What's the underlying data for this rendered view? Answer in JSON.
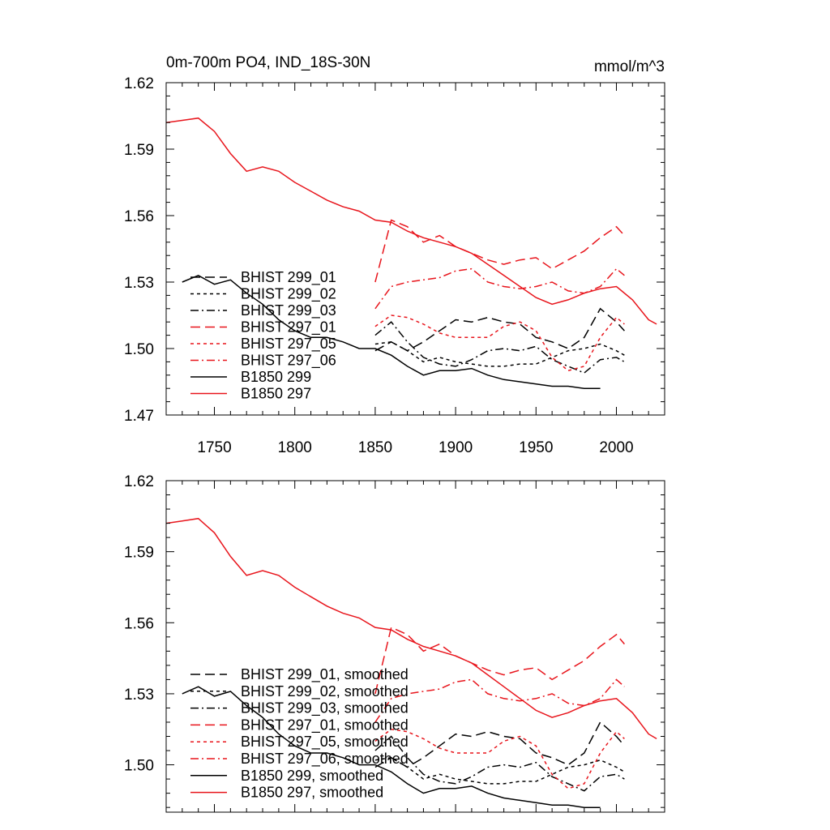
{
  "chart_data": [
    {
      "type": "line",
      "title": "0m-700m PO4, IND_18S-30N",
      "units": "mmol/m^3",
      "xlim": [
        1720,
        2030
      ],
      "ylim": [
        1.47,
        1.62
      ],
      "x_ticks": [
        1750,
        1800,
        1850,
        1900,
        1950,
        2000
      ],
      "x_tick_labels": [
        "1750",
        "1800",
        "1850",
        "1900",
        "1950",
        "2000"
      ],
      "y_ticks": [
        1.47,
        1.5,
        1.53,
        1.56,
        1.59,
        1.62
      ],
      "y_tick_labels": [
        "1.47",
        "1.50",
        "1.53",
        "1.56",
        "1.59",
        "1.62"
      ],
      "legend": {
        "location": "lower-left"
      },
      "series": [
        {
          "name": "BHIST 299_01",
          "color": "#000000",
          "dash": "long-dash",
          "x": [
            1850,
            1860,
            1870,
            1880,
            1890,
            1900,
            1910,
            1920,
            1930,
            1940,
            1950,
            1960,
            1970,
            1980,
            1990,
            2000,
            2005
          ],
          "y": [
            1.499,
            1.503,
            1.499,
            1.503,
            1.508,
            1.513,
            1.512,
            1.514,
            1.512,
            1.511,
            1.505,
            1.503,
            1.5,
            1.505,
            1.518,
            1.512,
            1.508
          ]
        },
        {
          "name": "BHIST 299_02",
          "color": "#000000",
          "dash": "short-dash",
          "x": [
            1850,
            1860,
            1870,
            1880,
            1890,
            1900,
            1910,
            1920,
            1930,
            1940,
            1950,
            1960,
            1970,
            1980,
            1990,
            2000,
            2005
          ],
          "y": [
            1.502,
            1.503,
            1.499,
            1.494,
            1.496,
            1.494,
            1.493,
            1.492,
            1.492,
            1.493,
            1.493,
            1.496,
            1.499,
            1.5,
            1.502,
            1.499,
            1.497
          ]
        },
        {
          "name": "BHIST 299_03",
          "color": "#000000",
          "dash": "dash-dot",
          "x": [
            1850,
            1860,
            1870,
            1880,
            1890,
            1900,
            1910,
            1920,
            1930,
            1940,
            1950,
            1960,
            1970,
            1980,
            1990,
            2000,
            2005
          ],
          "y": [
            1.506,
            1.512,
            1.503,
            1.496,
            1.493,
            1.492,
            1.495,
            1.499,
            1.5,
            1.499,
            1.501,
            1.495,
            1.492,
            1.489,
            1.495,
            1.496,
            1.494
          ]
        },
        {
          "name": "BHIST 297_01",
          "color": "#e8151c",
          "dash": "long-dash",
          "x": [
            1850,
            1860,
            1870,
            1880,
            1890,
            1900,
            1910,
            1920,
            1930,
            1940,
            1950,
            1960,
            1970,
            1980,
            1990,
            2000,
            2005
          ],
          "y": [
            1.53,
            1.558,
            1.555,
            1.548,
            1.551,
            1.546,
            1.543,
            1.54,
            1.538,
            1.54,
            1.541,
            1.536,
            1.54,
            1.544,
            1.55,
            1.555,
            1.551
          ]
        },
        {
          "name": "BHIST 297_05",
          "color": "#e8151c",
          "dash": "short-dash",
          "x": [
            1850,
            1860,
            1870,
            1880,
            1890,
            1900,
            1910,
            1920,
            1930,
            1940,
            1950,
            1960,
            1970,
            1980,
            1990,
            2000,
            2005
          ],
          "y": [
            1.51,
            1.515,
            1.514,
            1.511,
            1.507,
            1.505,
            1.505,
            1.505,
            1.51,
            1.512,
            1.508,
            1.496,
            1.49,
            1.492,
            1.505,
            1.514,
            1.511
          ]
        },
        {
          "name": "BHIST 297_06",
          "color": "#e8151c",
          "dash": "dash-dot",
          "x": [
            1850,
            1860,
            1870,
            1880,
            1890,
            1900,
            1910,
            1920,
            1930,
            1940,
            1950,
            1960,
            1970,
            1980,
            1990,
            2000,
            2005
          ],
          "y": [
            1.518,
            1.528,
            1.53,
            1.531,
            1.532,
            1.535,
            1.536,
            1.53,
            1.528,
            1.527,
            1.528,
            1.53,
            1.526,
            1.525,
            1.528,
            1.536,
            1.533
          ]
        },
        {
          "name": "B1850 299",
          "color": "#000000",
          "dash": "solid",
          "x": [
            1730,
            1740,
            1750,
            1760,
            1770,
            1780,
            1790,
            1800,
            1810,
            1820,
            1830,
            1840,
            1850,
            1860,
            1870,
            1880,
            1890,
            1900,
            1910,
            1920,
            1930,
            1940,
            1950,
            1960,
            1970,
            1980,
            1990
          ],
          "y": [
            1.53,
            1.533,
            1.529,
            1.531,
            1.525,
            1.52,
            1.513,
            1.508,
            1.505,
            1.505,
            1.503,
            1.5,
            1.5,
            1.497,
            1.492,
            1.488,
            1.49,
            1.49,
            1.491,
            1.488,
            1.486,
            1.485,
            1.484,
            1.483,
            1.483,
            1.482,
            1.482
          ]
        },
        {
          "name": "B1850 297",
          "color": "#e8151c",
          "dash": "solid",
          "x": [
            1720,
            1730,
            1740,
            1750,
            1760,
            1770,
            1780,
            1790,
            1800,
            1810,
            1820,
            1830,
            1840,
            1850,
            1860,
            1870,
            1880,
            1890,
            1900,
            1910,
            1920,
            1930,
            1940,
            1950,
            1960,
            1970,
            1980,
            1990,
            2000,
            2010,
            2020,
            2025
          ],
          "y": [
            1.602,
            1.603,
            1.604,
            1.598,
            1.588,
            1.58,
            1.582,
            1.58,
            1.575,
            1.571,
            1.567,
            1.564,
            1.562,
            1.558,
            1.557,
            1.553,
            1.55,
            1.548,
            1.546,
            1.543,
            1.538,
            1.533,
            1.528,
            1.523,
            1.52,
            1.522,
            1.525,
            1.527,
            1.528,
            1.522,
            1.513,
            1.511
          ]
        }
      ]
    },
    {
      "type": "line",
      "xlim": [
        1720,
        2030
      ],
      "ylim": [
        1.48,
        1.62
      ],
      "x_ticks": [
        1750,
        1800,
        1850,
        1900,
        1950,
        2000
      ],
      "y_ticks": [
        1.5,
        1.53,
        1.56,
        1.59,
        1.62
      ],
      "y_tick_labels": [
        "1.50",
        "1.53",
        "1.56",
        "1.59",
        "1.62"
      ],
      "legend": {
        "location": "lower-left"
      },
      "series": [
        {
          "name": "BHIST 299_01, smoothed",
          "color": "#000000",
          "dash": "long-dash",
          "x": [
            1850,
            1860,
            1870,
            1880,
            1890,
            1900,
            1910,
            1920,
            1930,
            1940,
            1950,
            1960,
            1970,
            1980,
            1990,
            2000,
            2005
          ],
          "y": [
            1.499,
            1.503,
            1.499,
            1.503,
            1.508,
            1.513,
            1.512,
            1.514,
            1.512,
            1.511,
            1.505,
            1.503,
            1.5,
            1.505,
            1.518,
            1.512,
            1.508
          ]
        },
        {
          "name": "BHIST 299_02, smoothed",
          "color": "#000000",
          "dash": "short-dash",
          "x": [
            1850,
            1860,
            1870,
            1880,
            1890,
            1900,
            1910,
            1920,
            1930,
            1940,
            1950,
            1960,
            1970,
            1980,
            1990,
            2000,
            2005
          ],
          "y": [
            1.502,
            1.503,
            1.499,
            1.494,
            1.496,
            1.494,
            1.493,
            1.492,
            1.492,
            1.493,
            1.493,
            1.496,
            1.499,
            1.5,
            1.502,
            1.499,
            1.497
          ]
        },
        {
          "name": "BHIST 299_03, smoothed",
          "color": "#000000",
          "dash": "dash-dot",
          "x": [
            1850,
            1860,
            1870,
            1880,
            1890,
            1900,
            1910,
            1920,
            1930,
            1940,
            1950,
            1960,
            1970,
            1980,
            1990,
            2000,
            2005
          ],
          "y": [
            1.506,
            1.512,
            1.503,
            1.496,
            1.493,
            1.492,
            1.495,
            1.499,
            1.5,
            1.499,
            1.501,
            1.495,
            1.492,
            1.489,
            1.495,
            1.496,
            1.494
          ]
        },
        {
          "name": "BHIST 297_01, smoothed",
          "color": "#e8151c",
          "dash": "long-dash",
          "x": [
            1850,
            1860,
            1870,
            1880,
            1890,
            1900,
            1910,
            1920,
            1930,
            1940,
            1950,
            1960,
            1970,
            1980,
            1990,
            2000,
            2005
          ],
          "y": [
            1.53,
            1.558,
            1.555,
            1.548,
            1.551,
            1.546,
            1.543,
            1.54,
            1.538,
            1.54,
            1.541,
            1.536,
            1.54,
            1.544,
            1.55,
            1.555,
            1.551
          ]
        },
        {
          "name": "BHIST 297_05, smoothed",
          "color": "#e8151c",
          "dash": "short-dash",
          "x": [
            1850,
            1860,
            1870,
            1880,
            1890,
            1900,
            1910,
            1920,
            1930,
            1940,
            1950,
            1960,
            1970,
            1980,
            1990,
            2000,
            2005
          ],
          "y": [
            1.51,
            1.515,
            1.514,
            1.511,
            1.507,
            1.505,
            1.505,
            1.505,
            1.51,
            1.512,
            1.508,
            1.496,
            1.49,
            1.492,
            1.505,
            1.514,
            1.511
          ]
        },
        {
          "name": "BHIST 297_06, smoothed",
          "color": "#e8151c",
          "dash": "dash-dot",
          "x": [
            1850,
            1860,
            1870,
            1880,
            1890,
            1900,
            1910,
            1920,
            1930,
            1940,
            1950,
            1960,
            1970,
            1980,
            1990,
            2000,
            2005
          ],
          "y": [
            1.518,
            1.528,
            1.53,
            1.531,
            1.532,
            1.535,
            1.536,
            1.53,
            1.528,
            1.527,
            1.528,
            1.53,
            1.526,
            1.525,
            1.528,
            1.536,
            1.533
          ]
        },
        {
          "name": "B1850 299, smoothed",
          "color": "#000000",
          "dash": "solid",
          "x": [
            1730,
            1740,
            1750,
            1760,
            1770,
            1780,
            1790,
            1800,
            1810,
            1820,
            1830,
            1840,
            1850,
            1860,
            1870,
            1880,
            1890,
            1900,
            1910,
            1920,
            1930,
            1940,
            1950,
            1960,
            1970,
            1980,
            1990
          ],
          "y": [
            1.53,
            1.533,
            1.529,
            1.531,
            1.525,
            1.52,
            1.513,
            1.508,
            1.505,
            1.505,
            1.503,
            1.5,
            1.5,
            1.497,
            1.492,
            1.488,
            1.49,
            1.49,
            1.491,
            1.488,
            1.486,
            1.485,
            1.484,
            1.483,
            1.483,
            1.482,
            1.482
          ]
        },
        {
          "name": "B1850 297, smoothed",
          "color": "#e8151c",
          "dash": "solid",
          "x": [
            1720,
            1730,
            1740,
            1750,
            1760,
            1770,
            1780,
            1790,
            1800,
            1810,
            1820,
            1830,
            1840,
            1850,
            1860,
            1870,
            1880,
            1890,
            1900,
            1910,
            1920,
            1930,
            1940,
            1950,
            1960,
            1970,
            1980,
            1990,
            2000,
            2010,
            2020,
            2025
          ],
          "y": [
            1.602,
            1.603,
            1.604,
            1.598,
            1.588,
            1.58,
            1.582,
            1.58,
            1.575,
            1.571,
            1.567,
            1.564,
            1.562,
            1.558,
            1.557,
            1.553,
            1.55,
            1.548,
            1.546,
            1.543,
            1.538,
            1.533,
            1.528,
            1.523,
            1.52,
            1.522,
            1.525,
            1.527,
            1.528,
            1.522,
            1.513,
            1.511
          ]
        }
      ]
    }
  ]
}
